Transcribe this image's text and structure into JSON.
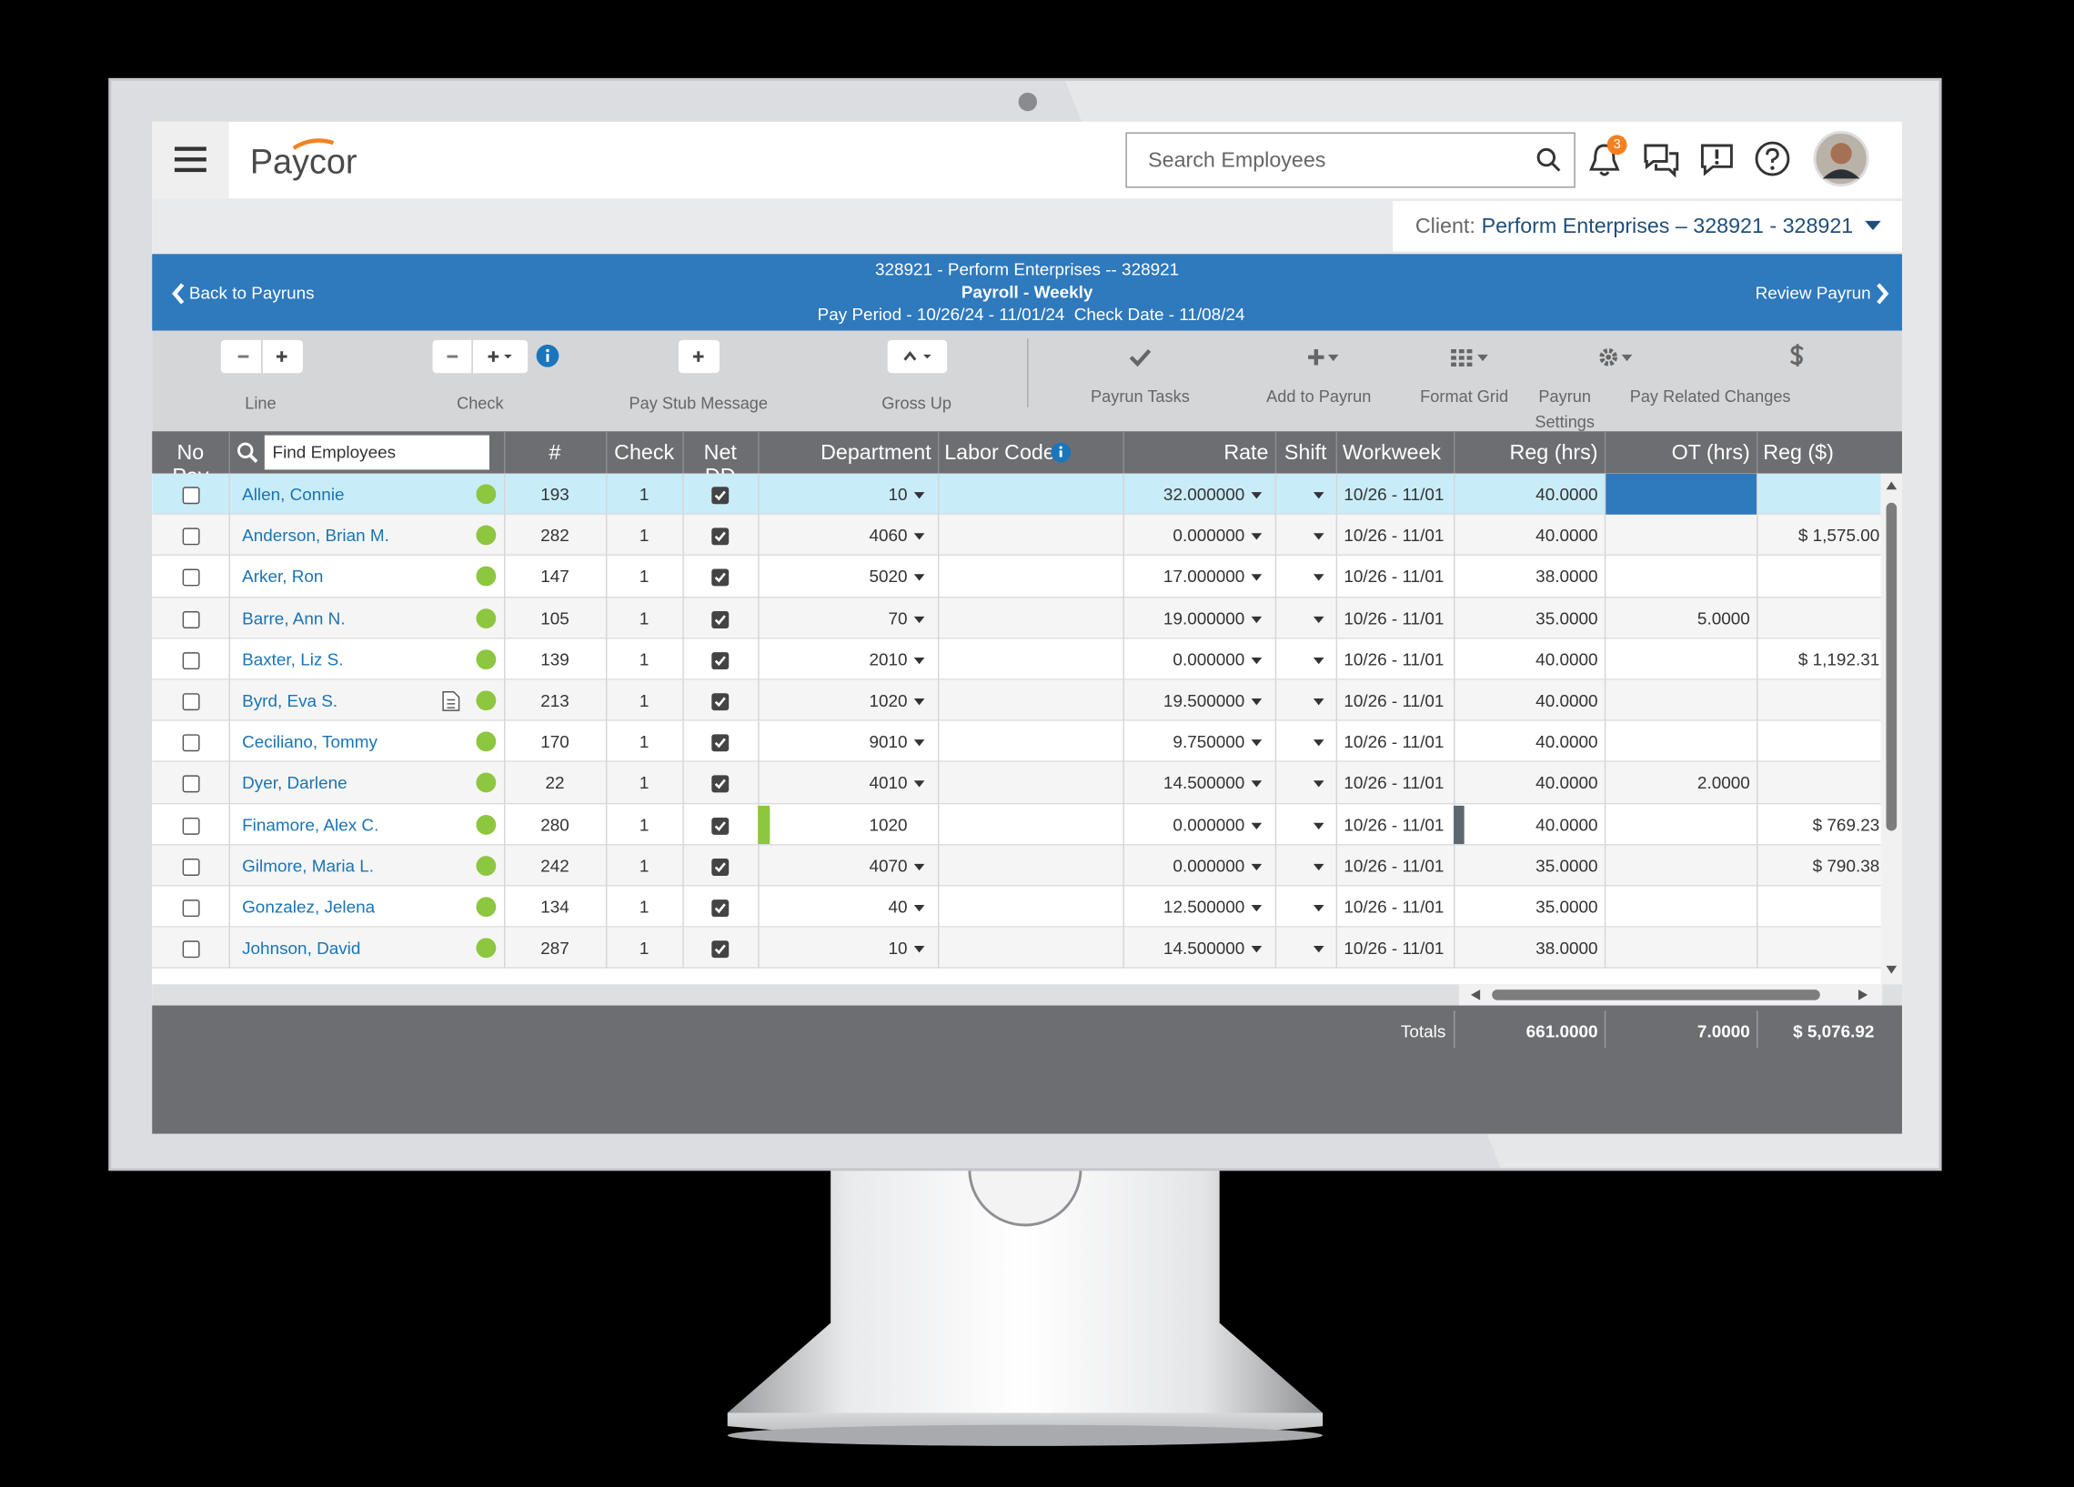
{
  "app": {
    "logo": "Paycor",
    "search_placeholder": "Search Employees",
    "notification_count": "3",
    "client_label": "Client:",
    "client_name": "Perform Enterprises – 328921 - 328921"
  },
  "payrun": {
    "back": "Back to Payruns",
    "line1": "328921 - Perform Enterprises -- 328921",
    "line2": "Payroll - Weekly",
    "pay_period": "Pay Period - 10/26/24 - 11/01/24",
    "check_date": "Check Date - 11/08/24",
    "review": "Review Payrun"
  },
  "toolbar": [
    "Line",
    "Check",
    "Pay Stub Message",
    "Gross Up",
    "Payrun Tasks",
    "Add to Payrun",
    "Format Grid",
    "Payrun Settings",
    "Pay Related Changes"
  ],
  "table": {
    "find_placeholder": "Find Employees",
    "columns": [
      "No Pay",
      "#",
      "Check",
      "Net DD",
      "Department",
      "Labor Codes",
      "Rate",
      "Shift",
      "Workweek",
      "Reg (hrs)",
      "OT (hrs)",
      "Reg ($)"
    ],
    "rows": [
      {
        "name": "Allen, Connie",
        "id": "193",
        "check": "1",
        "department": "10",
        "rate": "32.000000",
        "workweek": "10/26 - 11/01",
        "reg_hrs": "40.0000",
        "ot_hrs": null,
        "reg_pay": null
      },
      {
        "name": "Anderson, Brian M.",
        "id": "282",
        "check": "1",
        "department": "4060",
        "rate": "0.000000",
        "workweek": "10/26 - 11/01",
        "reg_hrs": "40.0000",
        "ot_hrs": null,
        "reg_pay": "$ 1,575.00"
      },
      {
        "name": "Arker, Ron",
        "id": "147",
        "check": "1",
        "department": "5020",
        "rate": "17.000000",
        "workweek": "10/26 - 11/01",
        "reg_hrs": "38.0000",
        "ot_hrs": null,
        "reg_pay": null
      },
      {
        "name": "Barre, Ann N.",
        "id": "105",
        "check": "1",
        "department": "70",
        "rate": "19.000000",
        "workweek": "10/26 - 11/01",
        "reg_hrs": "35.0000",
        "ot_hrs": "5.0000",
        "reg_pay": null
      },
      {
        "name": "Baxter, Liz S.",
        "id": "139",
        "check": "1",
        "department": "2010",
        "rate": "0.000000",
        "workweek": "10/26 - 11/01",
        "reg_hrs": "40.0000",
        "ot_hrs": null,
        "reg_pay": "$ 1,192.31"
      },
      {
        "name": "Byrd, Eva S.",
        "id": "213",
        "check": "1",
        "department": "1020",
        "rate": "19.500000",
        "workweek": "10/26 - 11/01",
        "reg_hrs": "40.0000",
        "ot_hrs": null,
        "reg_pay": null
      },
      {
        "name": "Ceciliano, Tommy",
        "id": "170",
        "check": "1",
        "department": "9010",
        "rate": "9.750000",
        "workweek": "10/26 - 11/01",
        "reg_hrs": "40.0000",
        "ot_hrs": null,
        "reg_pay": null
      },
      {
        "name": "Dyer, Darlene",
        "id": "22",
        "check": "1",
        "department": "4010",
        "rate": "14.500000",
        "workweek": "10/26 - 11/01",
        "reg_hrs": "40.0000",
        "ot_hrs": "2.0000",
        "reg_pay": null
      },
      {
        "name": "Finamore, Alex C.",
        "id": "280",
        "check": "1",
        "department": "1020",
        "rate": "0.000000",
        "workweek": "10/26 - 11/01",
        "reg_hrs": "40.0000",
        "ot_hrs": null,
        "reg_pay": "$ 769.23"
      },
      {
        "name": "Gilmore, Maria L.",
        "id": "242",
        "check": "1",
        "department": "4070",
        "rate": "0.000000",
        "workweek": "10/26 - 11/01",
        "reg_hrs": "35.0000",
        "ot_hrs": null,
        "reg_pay": "$ 790.38"
      },
      {
        "name": "Gonzalez, Jelena",
        "id": "134",
        "check": "1",
        "department": "40",
        "rate": "12.500000",
        "workweek": "10/26 - 11/01",
        "reg_hrs": "35.0000",
        "ot_hrs": null,
        "reg_pay": null
      },
      {
        "name": "Johnson, David",
        "id": "287",
        "check": "1",
        "department": "10",
        "rate": "14.500000",
        "workweek": "10/26 - 11/01",
        "reg_hrs": "38.0000",
        "ot_hrs": null,
        "reg_pay": null
      }
    ],
    "totals_label": "Totals",
    "totals": {
      "reg_hrs": "661.0000",
      "ot_hrs": "7.0000",
      "reg_pay": "$ 5,076.92"
    }
  }
}
